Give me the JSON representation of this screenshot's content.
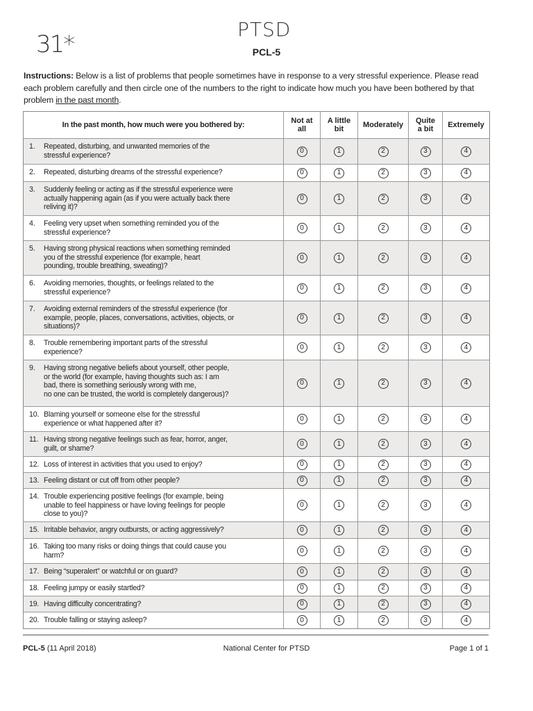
{
  "annotations": {
    "score": "31*",
    "handwritten_title": "PTSD"
  },
  "title": "PCL-5",
  "instructions": {
    "label": "Instructions:",
    "text": " Below is a list of problems that people sometimes have in response to a very stressful experience. Please read each problem carefully and then circle one of the numbers to the right to indicate how much you have been bothered by that problem ",
    "underlined": "in the past month",
    "end": "."
  },
  "table": {
    "header": {
      "question": "In the past month, how much were you bothered by:",
      "options": [
        "Not at\nall",
        "A little\nbit",
        "Moderately",
        "Quite\na bit",
        "Extremely"
      ]
    },
    "scale": [
      "0",
      "1",
      "2",
      "3",
      "4"
    ],
    "rows": [
      {
        "num": "1.",
        "text": "Repeated, disturbing, and unwanted memories of the\nstressful experience?"
      },
      {
        "num": "2.",
        "text": "Repeated, disturbing dreams of the stressful experience?"
      },
      {
        "num": "3.",
        "text": "Suddenly feeling or acting as if the stressful experience were\nactually happening again (as if you were actually back there\nreliving it)?"
      },
      {
        "num": "4.",
        "text": "Feeling very upset when something reminded you of the\nstressful experience?"
      },
      {
        "num": "5.",
        "text": "Having strong physical reactions when something reminded\nyou of the stressful experience (for example, heart\npounding, trouble breathing, sweating)?"
      },
      {
        "num": "6.",
        "text": "Avoiding memories, thoughts, or feelings related to the\nstressful experience?"
      },
      {
        "num": "7.",
        "text": "Avoiding external reminders of the stressful experience (for\nexample, people, places, conversations, activities, objects, or\nsituations)?"
      },
      {
        "num": "8.",
        "text": "Trouble remembering important parts of the stressful\nexperience?"
      },
      {
        "num": "9.",
        "text": "Having strong negative beliefs about yourself, other people,\nor the world (for example, having thoughts such as: I am\nbad, there is something seriously wrong with me,\nno one can be trusted, the world is completely dangerous)?"
      },
      {
        "num": "10.",
        "text": "Blaming yourself or someone else for the stressful\nexperience or what happened after it?"
      },
      {
        "num": "11.",
        "text": "Having strong negative feelings such as fear, horror, anger,\nguilt, or shame?"
      },
      {
        "num": "12.",
        "text": "Loss of interest in activities that you used to enjoy?"
      },
      {
        "num": "13.",
        "text": "Feeling distant or cut off from other people?"
      },
      {
        "num": "14.",
        "text": "Trouble experiencing positive feelings (for example, being\nunable to feel happiness or have loving feelings for people\nclose to you)?"
      },
      {
        "num": "15.",
        "text": "Irritable behavior, angry outbursts, or acting aggressively?"
      },
      {
        "num": "16.",
        "text": "Taking too many risks or doing things that could cause you\nharm?"
      },
      {
        "num": "17.",
        "text": "Being “superalert” or watchful or on guard?"
      },
      {
        "num": "18.",
        "text": "Feeling jumpy or easily startled?"
      },
      {
        "num": "19.",
        "text": "Having difficulty concentrating?"
      },
      {
        "num": "20.",
        "text": "Trouble falling or staying asleep?"
      }
    ]
  },
  "footer": {
    "left_bold": "PCL-5",
    "left": " (11 April 2018)",
    "center": "National Center for PTSD",
    "right": "Page 1 of 1"
  }
}
